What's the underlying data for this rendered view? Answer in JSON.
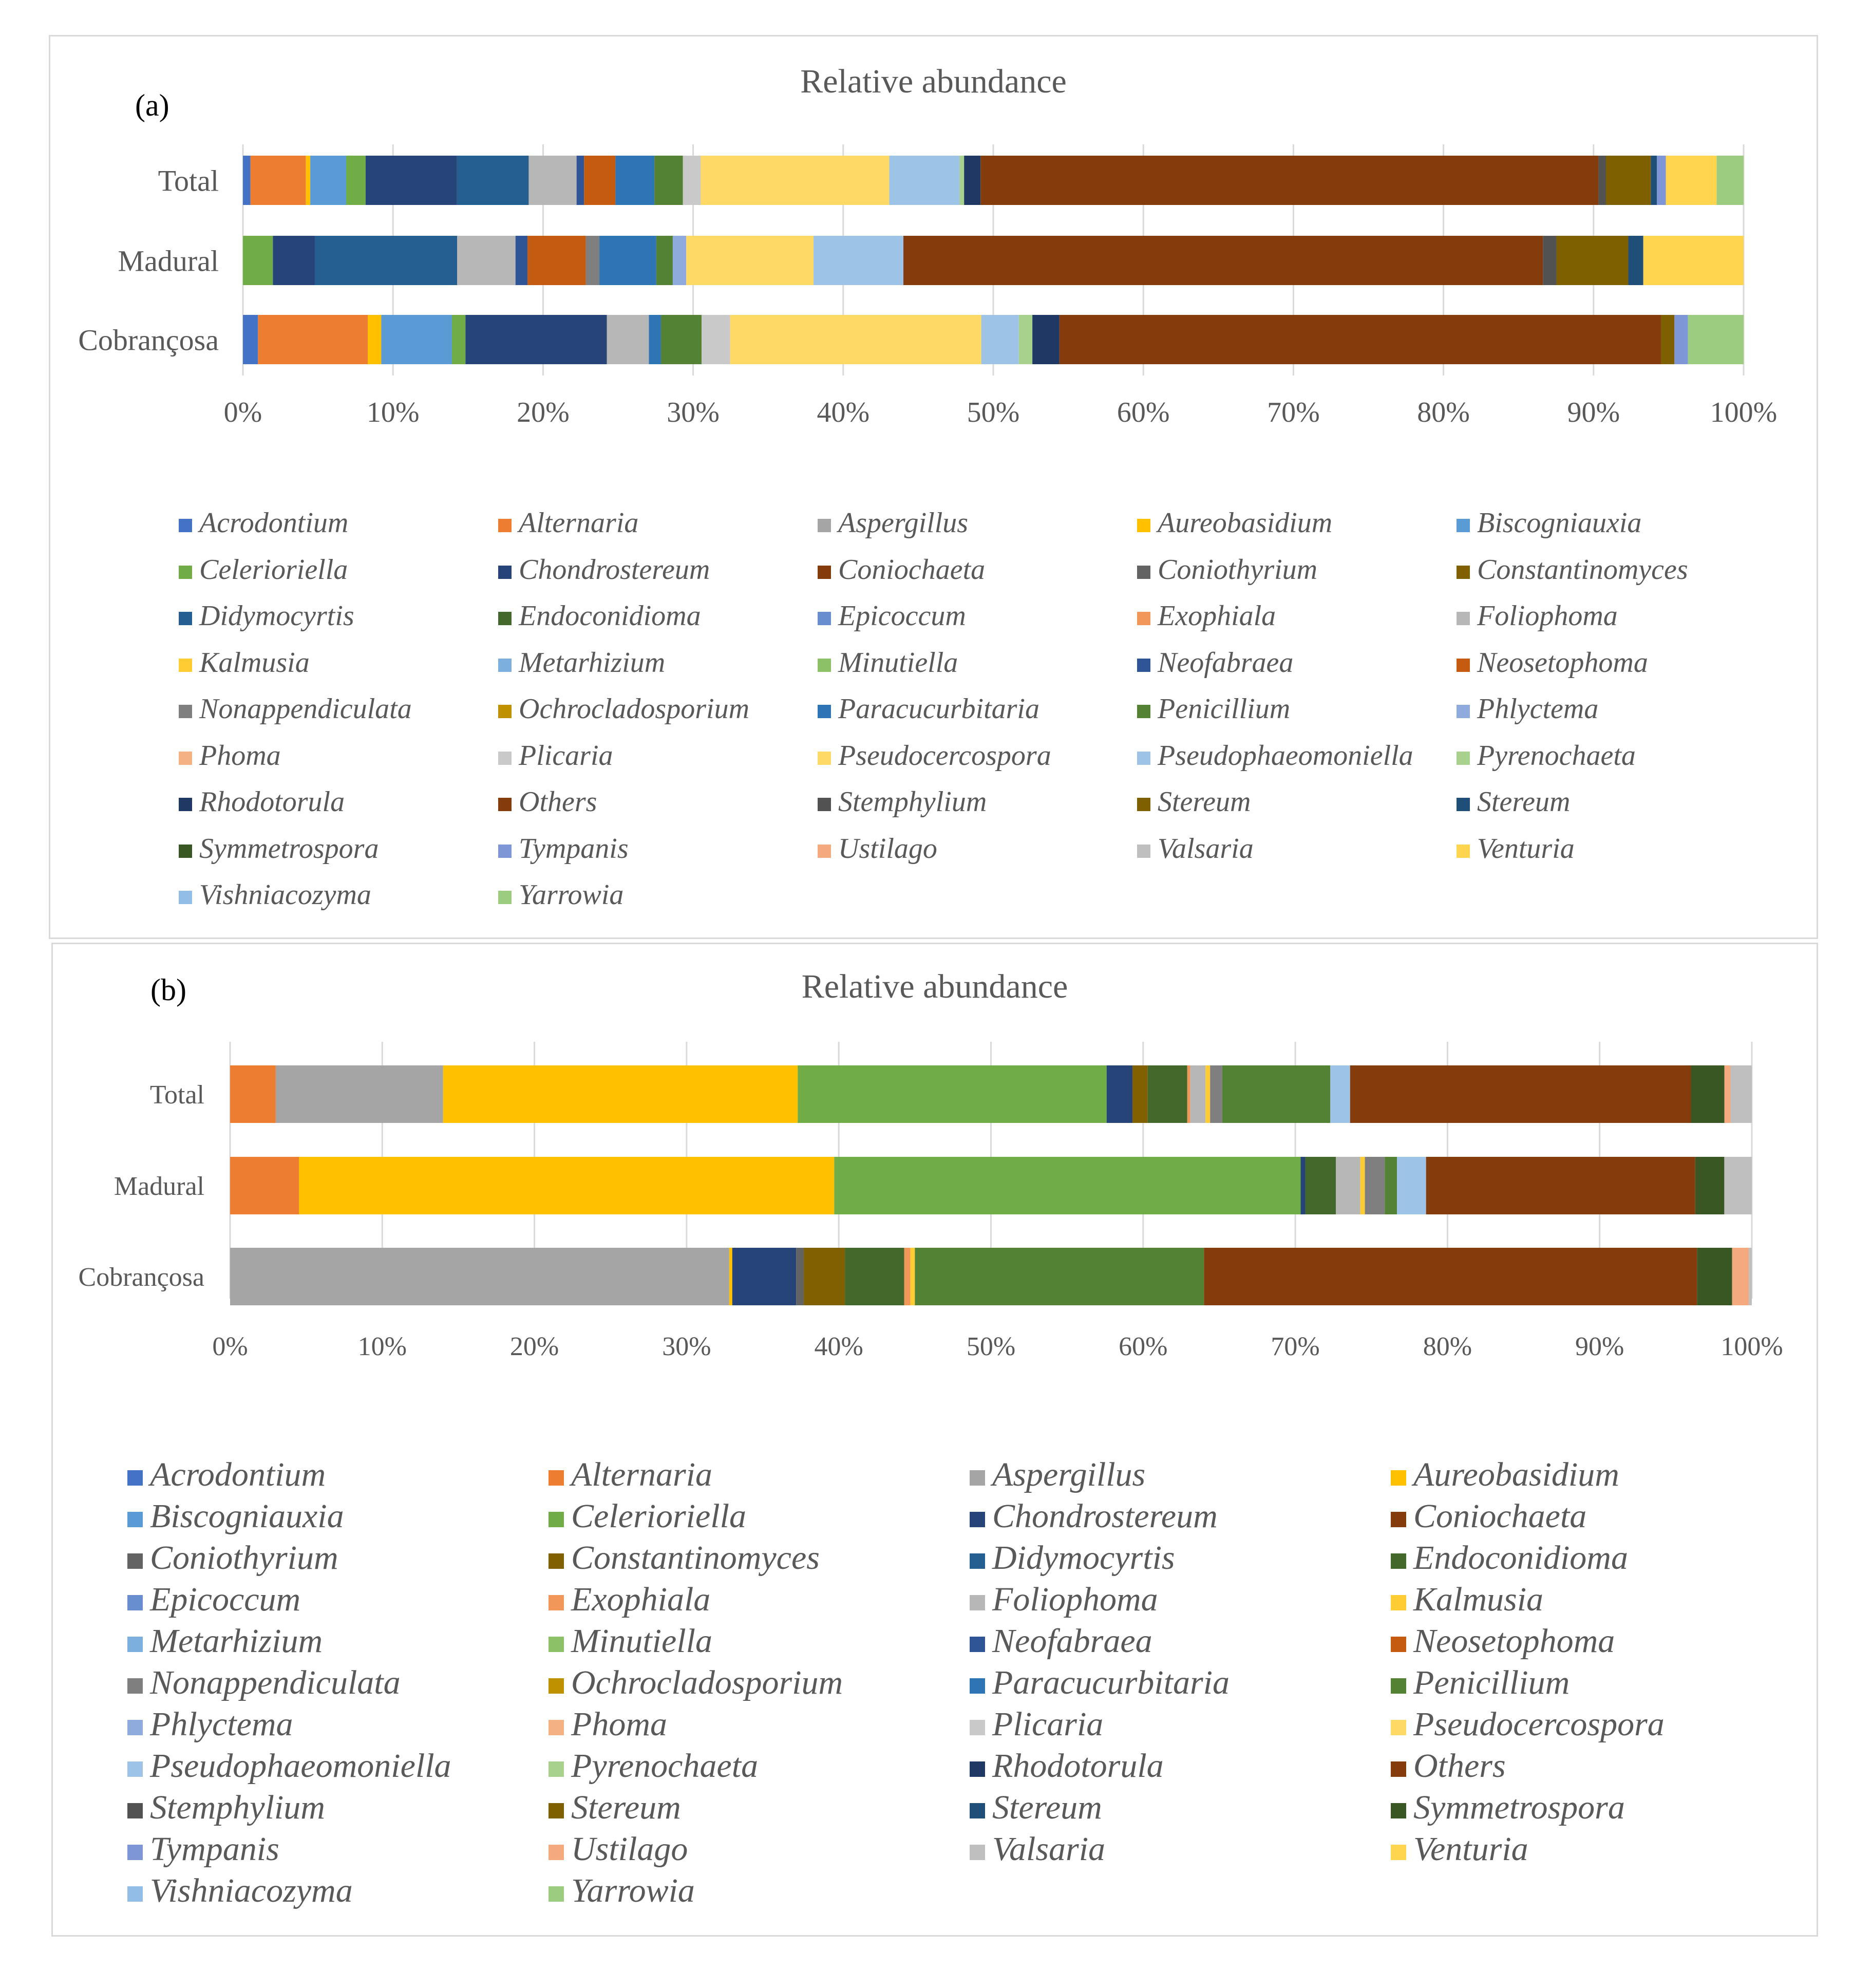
{
  "figure": {
    "panel_a_label": "(a)",
    "panel_b_label": "(b)"
  },
  "legend_labels": [
    "Acrodontium",
    "Alternaria",
    "Aspergillus",
    "Aureobasidium",
    "Biscogniauxia",
    "Celerioriella",
    "Chondrostereum",
    "Coniochaeta",
    "Coniothyrium",
    "Constantinomyces",
    "Didymocyrtis",
    "Endoconidioma",
    "Epicoccum",
    "Exophiala",
    "Foliophoma",
    "Kalmusia",
    "Metarhizium",
    "Minutiella",
    "Neofabraea",
    "Neosetophoma",
    "Nonappendiculata",
    "Ochrocladosporium",
    "Paracucurbitaria",
    "Penicillium",
    "Phlyctema",
    "Phoma",
    "Plicaria",
    "Pseudocercospora",
    "Pseudophaeomoniella",
    "Pyrenochaeta",
    "Rhodotorula",
    "Others",
    "Stemphylium",
    "Stereum",
    "Stereum",
    "Symmetrospora",
    "Tympanis",
    "Ustilago",
    "Valsaria",
    "Venturia",
    "Vishniacozyma",
    "Yarrowia"
  ],
  "legend_colors": [
    "#4472c4",
    "#ed7d31",
    "#a5a5a5",
    "#ffc000",
    "#5b9bd5",
    "#70ad47",
    "#264478",
    "#843c0c",
    "#636363",
    "#806000",
    "#255e91",
    "#43682b",
    "#698ed0",
    "#f1975a",
    "#b7b7b7",
    "#ffcd33",
    "#7cafdd",
    "#8cc168",
    "#2f5597",
    "#c55a11",
    "#7f7f7f",
    "#bf9000",
    "#2e75b6",
    "#548235",
    "#8faadc",
    "#f4b183",
    "#c9c9c9",
    "#ffd966",
    "#9dc3e6",
    "#a9d18e",
    "#1f3864",
    "#843c0c",
    "#525252",
    "#7f6000",
    "#1f4e79",
    "#385723",
    "#7f96d6",
    "#f4a97e",
    "#bfbfbf",
    "#ffd54f",
    "#92bde6",
    "#9ccc80"
  ],
  "chart_data": [
    {
      "type": "bar",
      "orientation": "horizontal",
      "stacked": "100%",
      "title": "Relative abundance",
      "categories": [
        "Total",
        "Madural",
        "Cobrançosa"
      ],
      "x_ticks": [
        "0%",
        "10%",
        "20%",
        "30%",
        "40%",
        "50%",
        "60%",
        "70%",
        "80%",
        "90%",
        "100%"
      ],
      "xlim": [
        0,
        100
      ],
      "legend_position": "bottom",
      "series": [
        {
          "name": "Acrodontium",
          "values": [
            0.5,
            0,
            1.0
          ]
        },
        {
          "name": "Alternaria",
          "values": [
            3.7,
            0,
            7.3
          ]
        },
        {
          "name": "Aureobasidium",
          "values": [
            0.3,
            0,
            0.9
          ]
        },
        {
          "name": "Biscogniauxia",
          "values": [
            2.4,
            0,
            4.7
          ]
        },
        {
          "name": "Celerioriella",
          "values": [
            1.3,
            2.0,
            0.9
          ]
        },
        {
          "name": "Chondrostereum",
          "values": [
            6.1,
            2.8,
            9.4
          ]
        },
        {
          "name": "Didymocyrtis",
          "values": [
            4.8,
            9.5,
            0
          ]
        },
        {
          "name": "Foliophoma",
          "values": [
            3.2,
            3.9,
            2.8
          ]
        },
        {
          "name": "Neofabraea",
          "values": [
            0.5,
            0.8,
            0
          ]
        },
        {
          "name": "Neosetophoma",
          "values": [
            2.1,
            3.9,
            0
          ]
        },
        {
          "name": "Nonappendiculata",
          "values": [
            0,
            0.9,
            0
          ]
        },
        {
          "name": "Paracucurbitaria",
          "values": [
            2.6,
            3.8,
            0.8
          ]
        },
        {
          "name": "Penicillium",
          "values": [
            1.9,
            1.1,
            2.7
          ]
        },
        {
          "name": "Phlyctema",
          "values": [
            0,
            0.9,
            0
          ]
        },
        {
          "name": "Plicaria",
          "values": [
            1.2,
            0,
            1.9
          ]
        },
        {
          "name": "Pseudocercospora",
          "values": [
            12.6,
            8.5,
            16.7
          ]
        },
        {
          "name": "Pseudophaeomoniella",
          "values": [
            4.7,
            6.0,
            2.5
          ]
        },
        {
          "name": "Pyrenochaeta",
          "values": [
            0.3,
            0,
            0.9
          ]
        },
        {
          "name": "Rhodotorula",
          "values": [
            1.1,
            0,
            1.8
          ]
        },
        {
          "name": "Others",
          "values": [
            41.3,
            42.7,
            40.0
          ]
        },
        {
          "name": "Stemphylium",
          "values": [
            0.5,
            0.9,
            0
          ]
        },
        {
          "name": "Stereum",
          "values": [
            3.0,
            4.8,
            0.9
          ]
        },
        {
          "name": "Stereum (2)",
          "values": [
            0.4,
            1.0,
            0
          ]
        },
        {
          "name": "Tympanis",
          "values": [
            0.6,
            0,
            0.9
          ]
        },
        {
          "name": "Venturia",
          "values": [
            3.4,
            6.7,
            0
          ]
        },
        {
          "name": "Yarrowia",
          "values": [
            1.8,
            0,
            3.7
          ]
        }
      ]
    },
    {
      "type": "bar",
      "orientation": "horizontal",
      "stacked": "100%",
      "title": "Relative abundance",
      "categories": [
        "Total",
        "Madural",
        "Cobrançosa"
      ],
      "x_ticks": [
        "0%",
        "10%",
        "20%",
        "30%",
        "40%",
        "50%",
        "60%",
        "70%",
        "80%",
        "90%",
        "100%"
      ],
      "xlim": [
        0,
        100
      ],
      "legend_position": "bottom",
      "series": [
        {
          "name": "Alternaria",
          "values": [
            3.0,
            4.5,
            0
          ]
        },
        {
          "name": "Aspergillus",
          "values": [
            11.0,
            0,
            32.8
          ]
        },
        {
          "name": "Aureobasidium",
          "values": [
            23.3,
            35.0,
            0.2
          ]
        },
        {
          "name": "Celerioriella",
          "values": [
            20.3,
            30.5,
            0
          ]
        },
        {
          "name": "Chondrostereum",
          "values": [
            1.7,
            0.3,
            4.2
          ]
        },
        {
          "name": "Coniothyrium",
          "values": [
            0,
            0,
            0.5
          ]
        },
        {
          "name": "Constantinomyces",
          "values": [
            1.0,
            0,
            2.7
          ]
        },
        {
          "name": "Endoconidioma",
          "values": [
            2.6,
            2.0,
            3.9
          ]
        },
        {
          "name": "Exophiala",
          "values": [
            0.2,
            0,
            0.4
          ]
        },
        {
          "name": "Foliophoma",
          "values": [
            1.0,
            1.6,
            0
          ]
        },
        {
          "name": "Kalmusia",
          "values": [
            0.3,
            0.3,
            0.3
          ]
        },
        {
          "name": "Nonappendiculata",
          "values": [
            0.8,
            1.3,
            0
          ]
        },
        {
          "name": "Penicillium",
          "values": [
            7.1,
            0.8,
            19.0
          ]
        },
        {
          "name": "Pseudophaeomoniella",
          "values": [
            1.3,
            1.9,
            0
          ]
        },
        {
          "name": "Others",
          "values": [
            22.4,
            17.6,
            32.4
          ]
        },
        {
          "name": "Symmetrospora",
          "values": [
            2.2,
            1.9,
            2.3
          ]
        },
        {
          "name": "Ustilago",
          "values": [
            0.4,
            0,
            1.1
          ]
        },
        {
          "name": "Valsaria",
          "values": [
            1.4,
            1.8,
            0.2
          ]
        }
      ]
    }
  ]
}
